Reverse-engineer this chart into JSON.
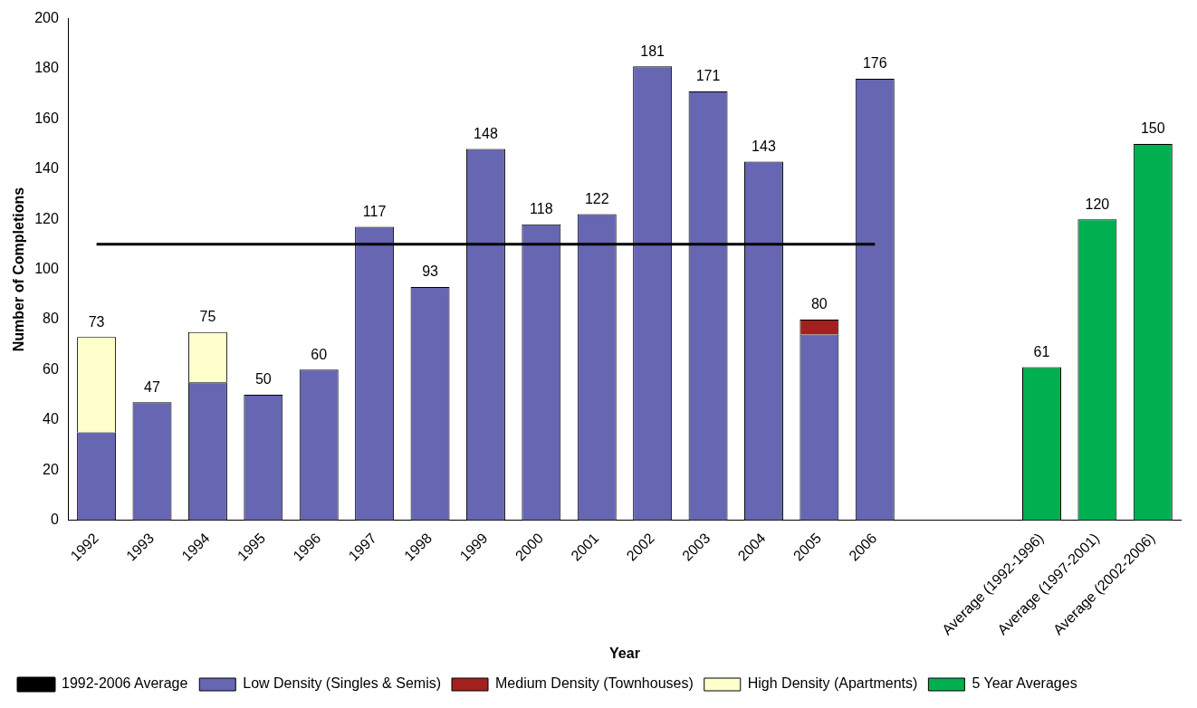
{
  "chart_data": {
    "type": "bar",
    "stacked": true,
    "xlabel": "Year",
    "ylabel": "Number of Completions",
    "categories": [
      "1992",
      "1993",
      "1994",
      "1995",
      "1996",
      "1997",
      "1998",
      "1999",
      "2000",
      "2001",
      "2002",
      "2003",
      "2004",
      "2005",
      "2006",
      null,
      null,
      "Average (1992-1996)",
      "Average (1997-2001)",
      "Average (2002-2006)"
    ],
    "series": [
      {
        "name": "Low Density (Singles & Semis)",
        "color": "#6666b3",
        "values": [
          35,
          47,
          55,
          50,
          60,
          117,
          93,
          148,
          118,
          122,
          181,
          171,
          143,
          74,
          176,
          null,
          null,
          null,
          null,
          null
        ]
      },
      {
        "name": "Medium Density (Townhouses)",
        "color": "#a3201f",
        "values": [
          null,
          null,
          null,
          null,
          null,
          null,
          null,
          null,
          null,
          null,
          null,
          null,
          null,
          6,
          null,
          null,
          null,
          null,
          null,
          null
        ]
      },
      {
        "name": "High Density (Apartments)",
        "color": "#ffffcc",
        "values": [
          38,
          null,
          20,
          null,
          null,
          null,
          null,
          null,
          null,
          null,
          null,
          null,
          null,
          null,
          null,
          null,
          null,
          null,
          null,
          null
        ]
      },
      {
        "name": "5 Year Averages",
        "color": "#00b050",
        "values": [
          null,
          null,
          null,
          null,
          null,
          null,
          null,
          null,
          null,
          null,
          null,
          null,
          null,
          null,
          null,
          null,
          null,
          61,
          120,
          150
        ]
      },
      {
        "name": "1992-2006 Average",
        "type": "line",
        "color": "#000000",
        "values": [
          110,
          110,
          110,
          110,
          110,
          110,
          110,
          110,
          110,
          110,
          110,
          110,
          110,
          110,
          110,
          null,
          null,
          null,
          null,
          null
        ]
      }
    ],
    "totals": [
      "73",
      "47",
      "75",
      "50",
      "60",
      "117",
      "93",
      "148",
      "118",
      "122",
      "181",
      "171",
      "143",
      "80",
      "176",
      null,
      null,
      "61",
      "120",
      "150"
    ],
    "ylim": [
      0,
      200
    ],
    "yticks": [
      0,
      20,
      40,
      60,
      80,
      100,
      120,
      140,
      160,
      180,
      200
    ],
    "legend": "bottom"
  }
}
